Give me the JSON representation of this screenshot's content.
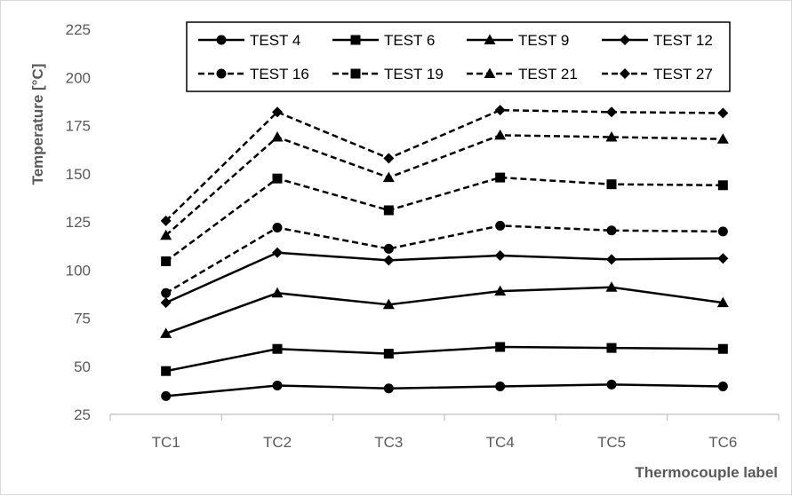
{
  "chart_data": {
    "type": "line",
    "title": "",
    "xlabel": "Thermocouple label",
    "ylabel": "Temperature [°C]",
    "categories": [
      "TC1",
      "TC2",
      "TC3",
      "TC4",
      "TC5",
      "TC6"
    ],
    "ylim": [
      25,
      225
    ],
    "yticks": [
      25,
      50,
      75,
      100,
      125,
      150,
      175,
      200,
      225
    ],
    "grid": false,
    "legend_position": "top",
    "series": [
      {
        "name": "TEST 4",
        "style": "solid",
        "marker": "circle",
        "values": [
          34.5,
          40,
          38.5,
          39.5,
          40.5,
          39.5
        ]
      },
      {
        "name": "TEST 6",
        "style": "solid",
        "marker": "square",
        "values": [
          47.5,
          59,
          56.5,
          60,
          59.5,
          59
        ]
      },
      {
        "name": "TEST 9",
        "style": "solid",
        "marker": "triangle",
        "values": [
          67,
          88,
          82,
          89,
          91,
          83
        ]
      },
      {
        "name": "TEST 12",
        "style": "solid",
        "marker": "diamond",
        "values": [
          83,
          109,
          105,
          107.5,
          105.5,
          106
        ]
      },
      {
        "name": "TEST 16",
        "style": "dashed",
        "marker": "circle",
        "values": [
          88,
          122,
          111,
          123,
          120.5,
          120
        ]
      },
      {
        "name": "TEST 19",
        "style": "dashed",
        "marker": "square",
        "values": [
          104.5,
          147.5,
          131,
          148,
          144.5,
          144
        ]
      },
      {
        "name": "TEST 21",
        "style": "dashed",
        "marker": "triangle",
        "values": [
          118,
          169,
          148,
          170,
          169,
          168
        ]
      },
      {
        "name": "TEST 27",
        "style": "dashed",
        "marker": "diamond",
        "values": [
          125.5,
          182,
          158,
          183,
          182,
          181.5
        ]
      }
    ]
  }
}
